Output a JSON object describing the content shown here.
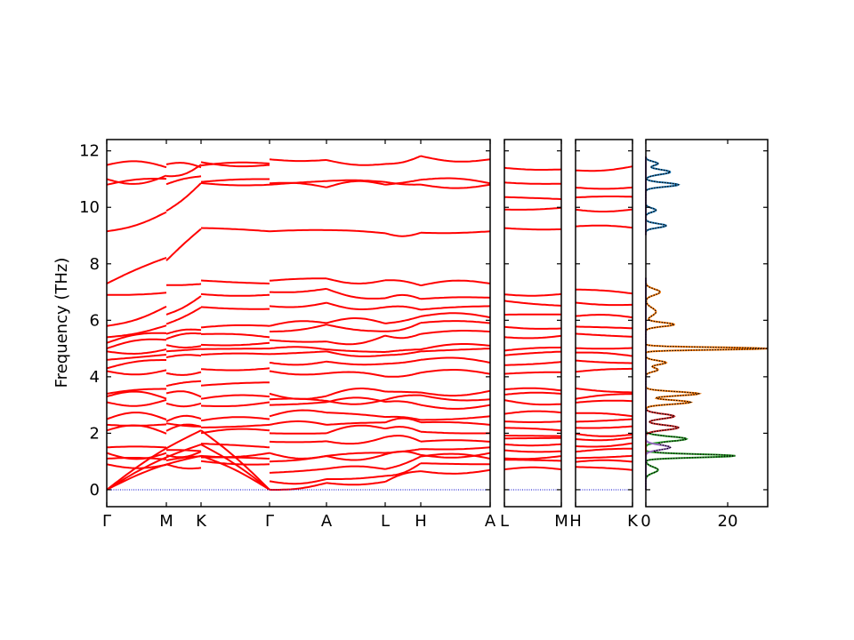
{
  "chart_data": {
    "type": "line",
    "ylabel": "Frequency (THz)",
    "ylim": [
      -0.6,
      12.4
    ],
    "y_ticks": [
      "0",
      "2",
      "4",
      "6",
      "8",
      "10",
      "12"
    ],
    "colors": {
      "band": "#ff0000",
      "zero_line": "#0000cc",
      "dos_total": "#000000",
      "dos_blue": "#1f77b4",
      "dos_orange": "#ff7f0e",
      "dos_green": "#2ca02c",
      "dos_red": "#d62728",
      "dos_purple": "#9467bd"
    },
    "panels": [
      {
        "name": "main",
        "tick_labels": [
          "Γ",
          "M",
          "K",
          "Γ",
          "A",
          "L",
          "H",
          "A"
        ],
        "segments": [
          {
            "from": "Γ",
            "to": "Γ",
            "start": [
              0,
              0,
              0,
              0.9,
              1.1,
              1.3,
              1.5,
              2.1,
              2.3,
              2.5,
              3.1,
              3.3,
              3.4,
              4.2,
              4.3,
              4.6,
              4.9,
              5.0,
              5.2,
              5.4,
              5.8,
              6.9,
              7.3,
              9.15,
              10.8,
              11.0,
              11.5
            ],
            "end": [
              0,
              0,
              0,
              0.9,
              1.1,
              1.3,
              1.5,
              2.1,
              2.3,
              2.5,
              3.1,
              3.3,
              3.8,
              4.3,
              4.8,
              5.0,
              5.2,
              5.4,
              5.8,
              6.4,
              6.9,
              7.3,
              9.15,
              10.8,
              11.0,
              11.5,
              11.55
            ]
          },
          {
            "from": "Γ",
            "to": "A",
            "start": [
              0,
              0.3,
              0.6,
              1.0,
              1.3,
              1.7,
              2.0,
              2.3,
              2.6,
              3.0,
              3.2,
              3.4,
              4.2,
              4.5,
              4.8,
              5.0,
              5.3,
              5.6,
              5.8,
              6.5,
              7.0,
              7.4,
              9.15,
              10.8,
              10.85,
              11.7
            ],
            "end": [
              0.7,
              0.9,
              1.1,
              1.3,
              1.5,
              1.7,
              2.0,
              2.3,
              2.6,
              3.0,
              3.2,
              3.5,
              4.1,
              4.5,
              5.0,
              5.1,
              5.6,
              5.9,
              6.1,
              6.5,
              6.8,
              7.3,
              9.15,
              10.8,
              10.85,
              11.7
            ]
          }
        ]
      },
      {
        "name": "L-M",
        "tick_labels": [
          "L",
          "M"
        ]
      },
      {
        "name": "H-K",
        "tick_labels": [
          "H",
          "K"
        ]
      },
      {
        "name": "dos",
        "tick_labels": [
          "0",
          "20"
        ],
        "xlim": [
          0,
          30
        ]
      }
    ]
  }
}
